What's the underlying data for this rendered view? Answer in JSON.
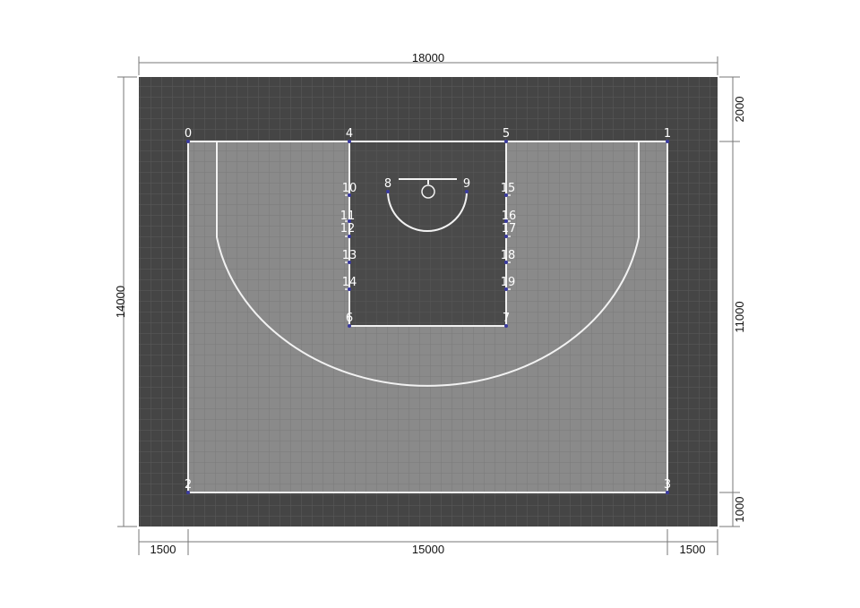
{
  "dimensions": {
    "top_width": "18000",
    "left_height": "14000",
    "right_top": "2000",
    "right_middle": "11000",
    "right_bottom": "1000",
    "bottom_left": "1500",
    "bottom_middle": "15000",
    "bottom_right": "1500"
  },
  "points": [
    {
      "id": "0",
      "label": "0"
    },
    {
      "id": "1",
      "label": "1"
    },
    {
      "id": "2",
      "label": "2"
    },
    {
      "id": "3",
      "label": "3"
    },
    {
      "id": "4",
      "label": "4"
    },
    {
      "id": "5",
      "label": "5"
    },
    {
      "id": "6",
      "label": "6"
    },
    {
      "id": "7",
      "label": "7"
    },
    {
      "id": "8",
      "label": "8"
    },
    {
      "id": "9",
      "label": "9"
    },
    {
      "id": "10",
      "label": "10"
    },
    {
      "id": "11",
      "label": "11"
    },
    {
      "id": "12",
      "label": "12"
    },
    {
      "id": "13",
      "label": "13"
    },
    {
      "id": "14",
      "label": "14"
    },
    {
      "id": "15",
      "label": "15"
    },
    {
      "id": "16",
      "label": "16"
    },
    {
      "id": "17",
      "label": "17"
    },
    {
      "id": "18",
      "label": "18"
    },
    {
      "id": "19",
      "label": "19"
    }
  ],
  "colors": {
    "surround": "#454545",
    "court": "#8a8a8a",
    "key": "#4a4a4a",
    "lines": "#f2f2f2",
    "grid_on_surround": "#5a5a5a",
    "grid_on_court": "#787878",
    "grid_on_key": "#585858",
    "point_marker": "#3a3aa0",
    "dimension_line": "#777777"
  }
}
